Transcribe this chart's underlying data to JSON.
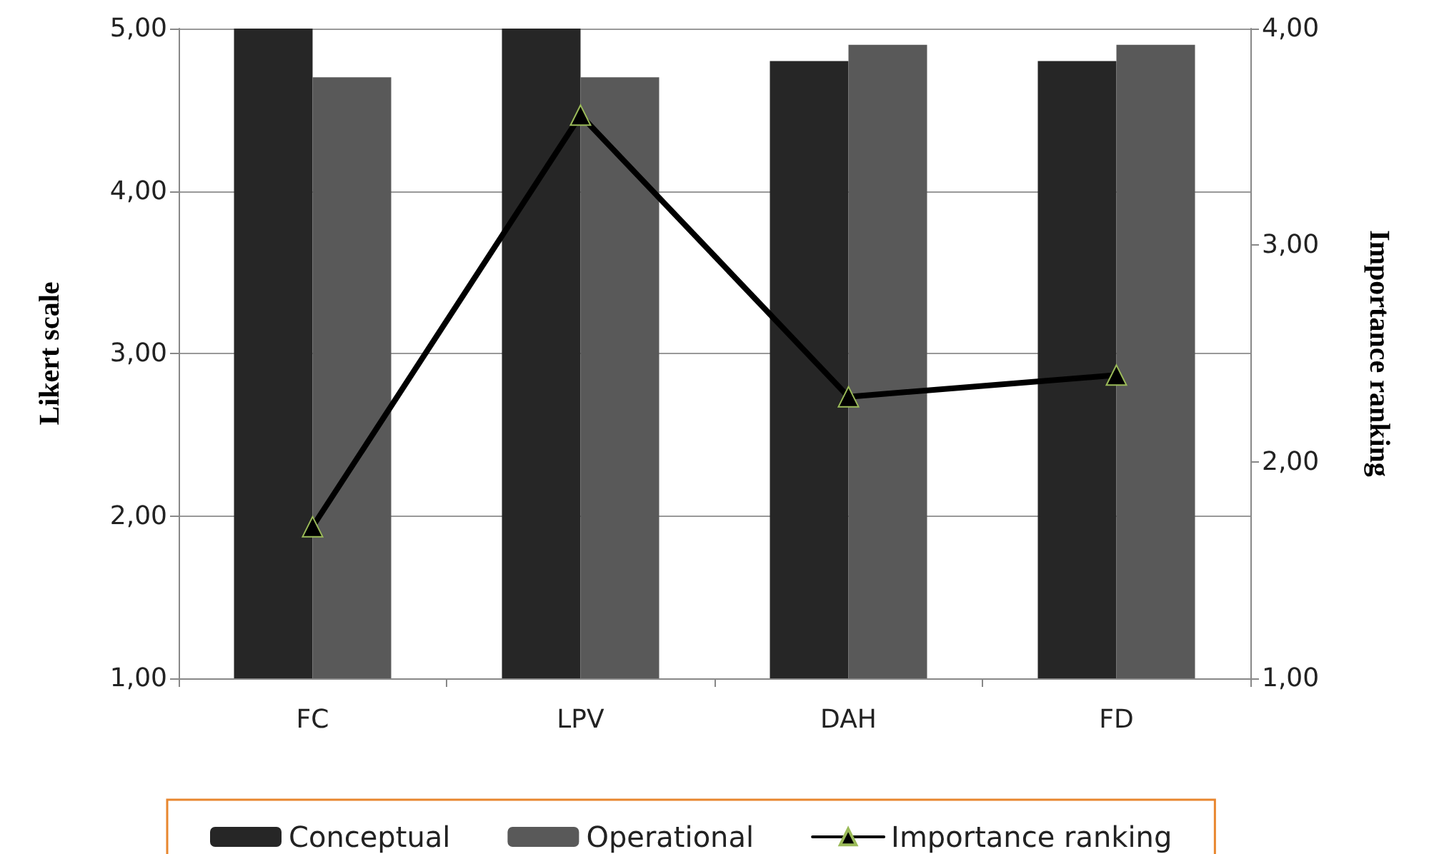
{
  "chart_data": {
    "type": "bar",
    "categories": [
      "FC",
      "LPV",
      "DAH",
      "FD"
    ],
    "ylabel": "Likert scale",
    "y2label": "Importance ranking",
    "series": [
      {
        "name": "Conceptual",
        "color": "#262626",
        "values": [
          5.0,
          5.0,
          4.8,
          4.8
        ]
      },
      {
        "name": "Operational",
        "color": "#595959",
        "values": [
          4.7,
          4.7,
          4.9,
          4.9
        ]
      },
      {
        "name": "Importance ranking",
        "type": "line",
        "axis": "y2",
        "color": "#000000",
        "values": [
          1.7,
          3.6,
          2.3,
          2.4
        ]
      }
    ],
    "ylim": [
      1,
      5
    ],
    "yticks": [
      {
        "value": 1,
        "label": "1,00"
      },
      {
        "value": 2,
        "label": "2,00"
      },
      {
        "value": 3,
        "label": "3,00"
      },
      {
        "value": 4,
        "label": "4,00"
      },
      {
        "value": 5,
        "label": "5,00"
      }
    ],
    "y2lim": [
      1,
      4
    ],
    "y2ticks": [
      {
        "value": 1,
        "label": "1,00"
      },
      {
        "value": 2,
        "label": "2,00"
      },
      {
        "value": 3,
        "label": "3,00"
      },
      {
        "value": 4,
        "label": "4,00"
      }
    ],
    "grid": "y",
    "legend": "bottom",
    "marker": "triangle",
    "line_style": "solid"
  }
}
